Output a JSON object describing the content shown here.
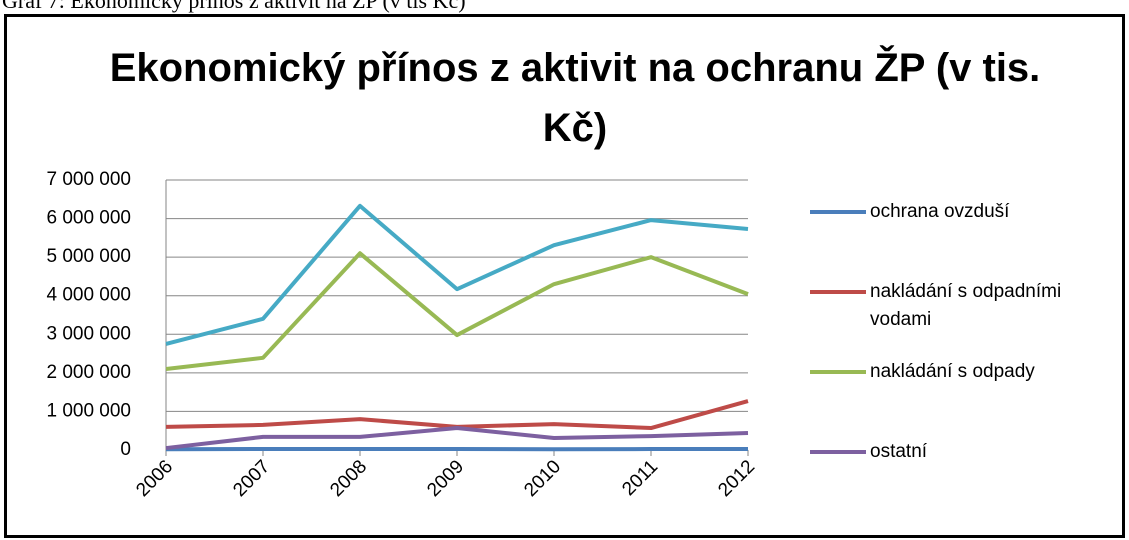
{
  "caption": "Graf 7: Ekonomický přínos z aktivit na ŽP (v tis Kč)",
  "chart_data": {
    "type": "line",
    "title": "Ekonomický přínos z aktivit na ochranu ŽP (v tis. Kč)",
    "categories": [
      "2006",
      "2007",
      "2008",
      "2009",
      "2010",
      "2011",
      "2012"
    ],
    "series": [
      {
        "name": "ochrana ovzduší",
        "color": "#4a7ebb",
        "values": [
          20000,
          25000,
          25000,
          25000,
          20000,
          25000,
          25000
        ]
      },
      {
        "name": "nakládání s odpadními vodami",
        "color": "#be4b48",
        "values": [
          600000,
          650000,
          800000,
          600000,
          670000,
          570000,
          1270000
        ]
      },
      {
        "name": "nakládání s odpady",
        "color": "#98b954",
        "values": [
          2100000,
          2390000,
          5100000,
          2980000,
          4300000,
          5000000,
          4040000
        ]
      },
      {
        "name": "ostatní",
        "color": "#7d60a0",
        "values": [
          50000,
          340000,
          340000,
          570000,
          310000,
          360000,
          440000
        ]
      },
      {
        "color": "#46aac5",
        "values": [
          2750000,
          3400000,
          6330000,
          4170000,
          5310000,
          5960000,
          5730000
        ]
      }
    ],
    "ylim": [
      0,
      7000000
    ],
    "yticks": [
      0,
      {
        "value": 1000000,
        "label": "1 000 000"
      },
      {
        "value": 2000000,
        "label": "2 000 000"
      },
      {
        "value": 3000000,
        "label": "3 000 000"
      },
      {
        "value": 4000000,
        "label": "4 000 000"
      },
      {
        "value": 5000000,
        "label": "5 000 000"
      },
      {
        "value": 6000000,
        "label": "6 000 000"
      },
      {
        "value": 7000000,
        "label": "7 000 000"
      }
    ],
    "grid": true
  }
}
